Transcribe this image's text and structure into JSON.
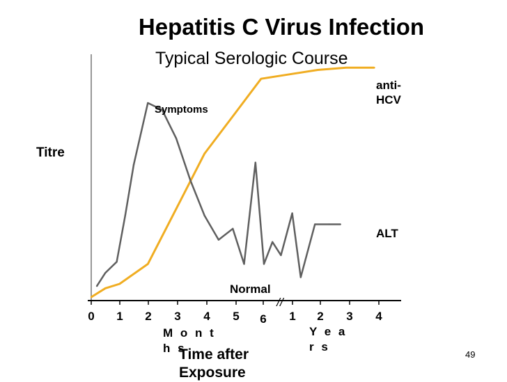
{
  "chart_data": {
    "type": "line",
    "title": "Hepatitis C Virus Infection",
    "subtitle": "Typical Serologic Course",
    "ylabel": "Titre",
    "xlabel": "Time after Exposure",
    "x_months_label": "M o n t h s",
    "x_years_label": "Y e a r s",
    "x_ticks": [
      "0",
      "1",
      "2",
      "3",
      "4",
      "5",
      "6",
      "1",
      "2",
      "3",
      "4"
    ],
    "x_break_marker": "//",
    "annotations": {
      "symptoms": "Symptoms",
      "normal": "Normal"
    },
    "ylim": [
      0,
      100
    ],
    "xlim": [
      0,
      10.7
    ],
    "series": [
      {
        "name": "anti-HCV",
        "color": "#f0ad22",
        "x": [
          0,
          0.5,
          1,
          2,
          3,
          4,
          5,
          6,
          7,
          8,
          9,
          10
        ],
        "y": [
          0,
          4,
          6,
          15,
          40,
          65,
          82,
          99,
          101,
          103,
          104,
          104
        ]
      },
      {
        "name": "ALT",
        "color": "#5f5f5f",
        "x": [
          0.2,
          0.5,
          0.9,
          1.2,
          1.5,
          2,
          2.5,
          3,
          3.5,
          4,
          4.5,
          5,
          5.4,
          5.8,
          6.1,
          6.4,
          6.7,
          7.1,
          7.4,
          7.9,
          8.4,
          8.8
        ],
        "y": [
          5,
          11,
          16,
          37,
          60,
          88,
          85,
          72,
          53,
          37,
          26,
          31,
          15,
          61,
          15,
          25,
          19,
          38,
          9,
          33,
          33,
          33
        ]
      }
    ]
  },
  "slide": {
    "page_number": "49"
  }
}
